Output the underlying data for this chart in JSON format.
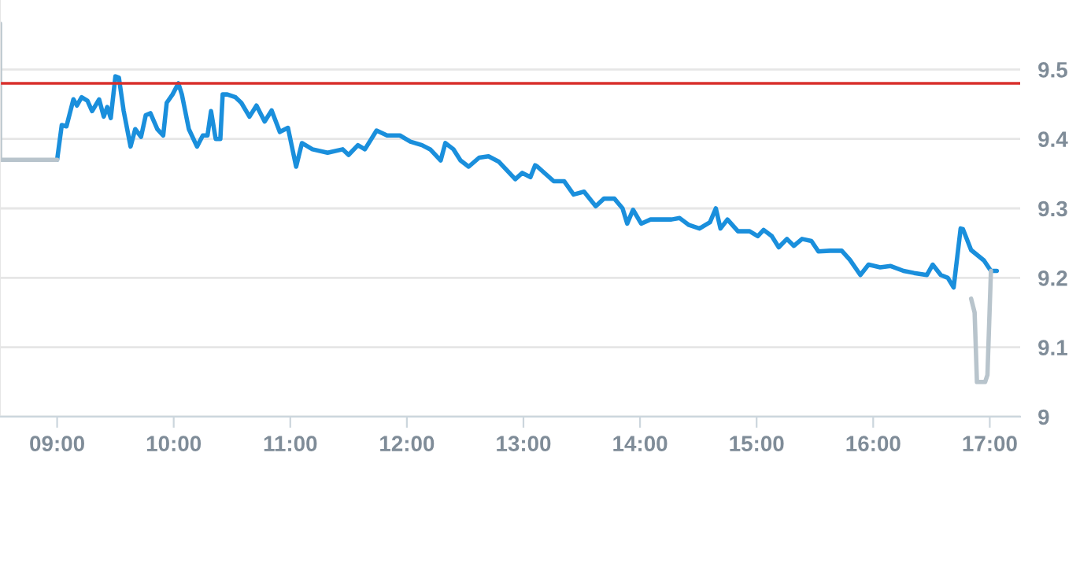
{
  "chart_data": {
    "type": "line",
    "series": [
      {
        "color": "#1a8fdc",
        "x": [
          9.0,
          9.04,
          9.08,
          9.14,
          9.17,
          9.21,
          9.26,
          9.3,
          9.36,
          9.4,
          9.43,
          9.46,
          9.5,
          9.53,
          9.57,
          9.63,
          9.67,
          9.72,
          9.76,
          9.8,
          9.86,
          9.91,
          9.94,
          9.99,
          10.04,
          10.07,
          10.13,
          10.2,
          10.25,
          10.29,
          10.32,
          10.36,
          10.4,
          10.42,
          10.46,
          10.53,
          10.58,
          10.65,
          10.71,
          10.78,
          10.84,
          10.91,
          10.98,
          11.05,
          11.1,
          11.19,
          11.32,
          11.45,
          11.5,
          11.58,
          11.64,
          11.74,
          11.83,
          11.94,
          12.03,
          12.13,
          12.2,
          12.29,
          12.33,
          12.4,
          12.46,
          12.53,
          12.62,
          12.7,
          12.79,
          12.93,
          12.99,
          13.06,
          13.1,
          13.12,
          13.26,
          13.35,
          13.43,
          13.52,
          13.62,
          13.69,
          13.78,
          13.85,
          13.89,
          13.94,
          14.01,
          14.09,
          14.27,
          14.34,
          14.42,
          14.51,
          14.6,
          14.65,
          14.69,
          14.75,
          14.84,
          14.94,
          15.01,
          15.06,
          15.13,
          15.19,
          15.26,
          15.32,
          15.39,
          15.47,
          15.53,
          15.63,
          15.73,
          15.8,
          15.89,
          15.96,
          16.06,
          16.15,
          16.26,
          16.35,
          16.46,
          16.51,
          16.58,
          16.64,
          16.69,
          16.75,
          16.77,
          16.84,
          16.95,
          17.01,
          17.06
        ],
        "values": [
          9.37,
          9.42,
          9.418,
          9.457,
          9.448,
          9.46,
          9.455,
          9.44,
          9.457,
          9.432,
          9.446,
          9.43,
          9.49,
          9.488,
          9.441,
          9.389,
          9.414,
          9.403,
          9.434,
          9.437,
          9.414,
          9.405,
          9.452,
          9.464,
          9.48,
          9.464,
          9.414,
          9.389,
          9.405,
          9.405,
          9.44,
          9.4,
          9.4,
          9.464,
          9.464,
          9.46,
          9.452,
          9.432,
          9.448,
          9.425,
          9.441,
          9.41,
          9.416,
          9.36,
          9.394,
          9.385,
          9.38,
          9.385,
          9.377,
          9.391,
          9.385,
          9.412,
          9.405,
          9.405,
          9.396,
          9.391,
          9.385,
          9.369,
          9.394,
          9.385,
          9.369,
          9.36,
          9.373,
          9.375,
          9.367,
          9.342,
          9.351,
          9.345,
          9.362,
          9.36,
          9.339,
          9.339,
          9.32,
          9.324,
          9.303,
          9.314,
          9.314,
          9.3,
          9.278,
          9.298,
          9.278,
          9.284,
          9.284,
          9.286,
          9.276,
          9.271,
          9.28,
          9.3,
          9.271,
          9.284,
          9.267,
          9.267,
          9.26,
          9.269,
          9.26,
          9.244,
          9.256,
          9.246,
          9.256,
          9.253,
          9.238,
          9.239,
          9.239,
          9.226,
          9.204,
          9.219,
          9.215,
          9.217,
          9.21,
          9.207,
          9.204,
          9.219,
          9.204,
          9.2,
          9.186,
          9.271,
          9.27,
          9.24,
          9.225,
          9.21,
          9.21
        ]
      },
      {
        "color": "#b8c4cc",
        "x": [
          8.51,
          8.51,
          9.0
        ],
        "values": [
          9.566,
          9.37,
          9.37
        ]
      },
      {
        "color": "#b8c4cc",
        "x": [
          16.84,
          16.87,
          16.89,
          16.96,
          16.98,
          17.01
        ],
        "values": [
          9.17,
          9.15,
          9.05,
          9.05,
          9.06,
          9.21
        ]
      }
    ],
    "xlim": [
      8.51,
      17.26
    ],
    "xticks": [
      {
        "value": 9,
        "label": "09:00"
      },
      {
        "value": 10,
        "label": "10:00"
      },
      {
        "value": 11,
        "label": "11:00"
      },
      {
        "value": 12,
        "label": "12:00"
      },
      {
        "value": 13,
        "label": "13:00"
      },
      {
        "value": 14,
        "label": "14:00"
      },
      {
        "value": 15,
        "label": "15:00"
      },
      {
        "value": 16,
        "label": "16:00"
      },
      {
        "value": 17,
        "label": "17:00"
      }
    ],
    "ylim": [
      9,
      9.6
    ],
    "yticks": [
      9,
      9.1,
      9.2,
      9.3,
      9.4,
      9.5
    ],
    "grid": "y",
    "legend": false,
    "ref_lines": [
      {
        "axis": "y",
        "value": 9.48,
        "color": "#d9302c"
      }
    ]
  }
}
